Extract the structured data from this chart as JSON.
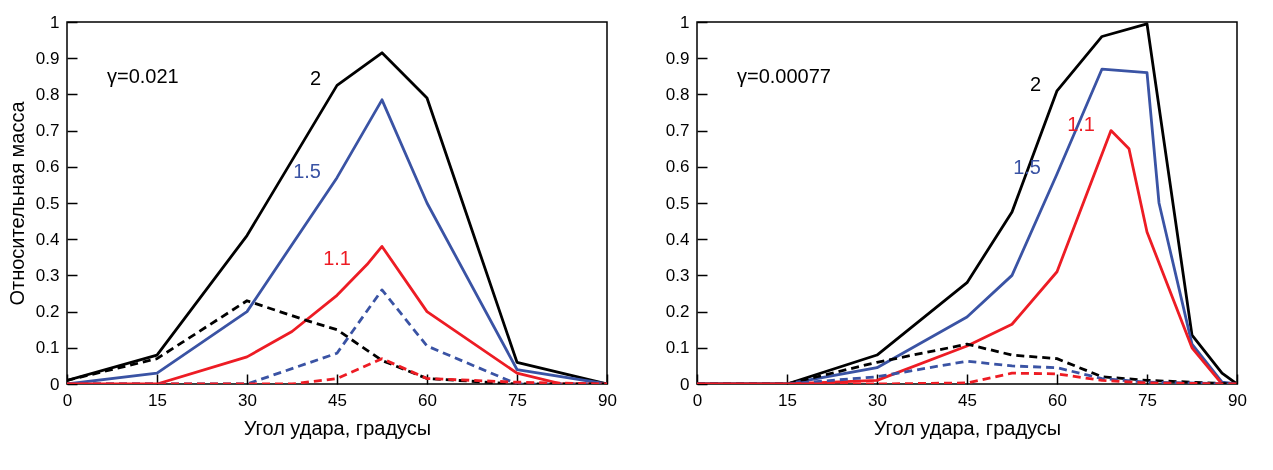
{
  "chart_data": [
    {
      "type": "line",
      "xlabel": "Угол удара, градусы",
      "ylabel": "Относительная масса",
      "annotations": [
        "γ=0.021"
      ],
      "xlim": [
        0,
        90
      ],
      "xticks": [
        0,
        15,
        30,
        45,
        60,
        75,
        90
      ],
      "ylim": [
        0,
        1
      ],
      "yticks": [
        0,
        0.1,
        0.2,
        0.3,
        0.4,
        0.5,
        0.6,
        0.7,
        0.8,
        0.9,
        1
      ],
      "legend": false,
      "grid": false,
      "series": [
        {
          "name": "2",
          "color": "#000000",
          "line_style": "solid",
          "x": [
            0,
            15,
            30,
            45,
            52.5,
            60,
            75,
            90
          ],
          "values": [
            0.01,
            0.08,
            0.41,
            0.825,
            0.915,
            0.79,
            0.06,
            0
          ]
        },
        {
          "name": "1.5",
          "color": "#3a53a4",
          "line_style": "solid",
          "x": [
            0,
            15,
            30,
            45,
            52.5,
            60,
            75,
            90
          ],
          "values": [
            0,
            0.03,
            0.2,
            0.57,
            0.785,
            0.5,
            0.04,
            0
          ]
        },
        {
          "name": "1.1",
          "color": "#ed1c24",
          "line_style": "solid",
          "x": [
            0,
            15,
            30,
            37.5,
            45,
            50,
            52.5,
            60,
            75,
            82.5,
            90
          ],
          "values": [
            0,
            0,
            0.075,
            0.145,
            0.245,
            0.33,
            0.38,
            0.2,
            0.03,
            0,
            0
          ]
        },
        {
          "color": "#000000",
          "line_style": "dashed",
          "x": [
            0,
            15,
            30,
            40,
            45,
            52.5,
            60,
            75,
            90
          ],
          "values": [
            0.01,
            0.07,
            0.23,
            0.175,
            0.15,
            0.065,
            0.015,
            0,
            0
          ]
        },
        {
          "color": "#3a53a4",
          "line_style": "dashed",
          "x": [
            0,
            30,
            45,
            52.5,
            60,
            75,
            90
          ],
          "values": [
            0,
            0,
            0.085,
            0.26,
            0.105,
            0,
            0
          ]
        },
        {
          "color": "#ed1c24",
          "line_style": "dashed",
          "x": [
            0,
            37.5,
            45,
            52.5,
            60,
            75,
            90
          ],
          "values": [
            0,
            0,
            0.015,
            0.07,
            0.015,
            0.005,
            0
          ]
        }
      ]
    },
    {
      "type": "line",
      "xlabel": "Угол удара, градусы",
      "annotations": [
        "γ=0.00077"
      ],
      "xlim": [
        0,
        90
      ],
      "xticks": [
        0,
        15,
        30,
        45,
        60,
        75,
        90
      ],
      "ylim": [
        0,
        1
      ],
      "yticks": [
        0,
        0.1,
        0.2,
        0.3,
        0.4,
        0.5,
        0.6,
        0.7,
        0.8,
        0.9,
        1
      ],
      "legend": false,
      "grid": false,
      "series": [
        {
          "name": "2",
          "color": "#000000",
          "line_style": "solid",
          "x": [
            0,
            15,
            30,
            45,
            52.5,
            60,
            67.5,
            75,
            82.5,
            87.5,
            90
          ],
          "values": [
            0,
            0,
            0.08,
            0.28,
            0.475,
            0.81,
            0.96,
            0.995,
            0.135,
            0.03,
            0
          ]
        },
        {
          "name": "1.5",
          "color": "#3a53a4",
          "line_style": "solid",
          "x": [
            0,
            15,
            30,
            45,
            52.5,
            60,
            67.5,
            75,
            77,
            82.5,
            87.5,
            90
          ],
          "values": [
            0,
            0,
            0.045,
            0.185,
            0.3,
            0.58,
            0.87,
            0.86,
            0.5,
            0.11,
            0.005,
            0
          ]
        },
        {
          "name": "1.1",
          "color": "#ed1c24",
          "line_style": "solid",
          "x": [
            0,
            15,
            30,
            45,
            52.5,
            60,
            69,
            72,
            75,
            82.5,
            87.5,
            90
          ],
          "values": [
            0,
            0,
            0.01,
            0.105,
            0.165,
            0.31,
            0.7,
            0.65,
            0.42,
            0.1,
            0,
            0
          ]
        },
        {
          "color": "#000000",
          "line_style": "dashed",
          "x": [
            0,
            15,
            20,
            30,
            45,
            52.5,
            60,
            67.5,
            75,
            90
          ],
          "values": [
            0,
            0,
            0.02,
            0.06,
            0.11,
            0.08,
            0.07,
            0.02,
            0.01,
            0
          ]
        },
        {
          "color": "#3a53a4",
          "line_style": "dashed",
          "x": [
            0,
            15,
            30,
            45,
            52.5,
            60,
            67.5,
            75,
            90
          ],
          "values": [
            0,
            0,
            0.02,
            0.063,
            0.05,
            0.045,
            0.015,
            0.005,
            0
          ]
        },
        {
          "color": "#ed1c24",
          "line_style": "dashed",
          "x": [
            0,
            30,
            45,
            52.5,
            60,
            67.5,
            75,
            90
          ],
          "values": [
            0,
            0,
            0.003,
            0.03,
            0.028,
            0.01,
            0.003,
            0
          ]
        }
      ]
    }
  ]
}
